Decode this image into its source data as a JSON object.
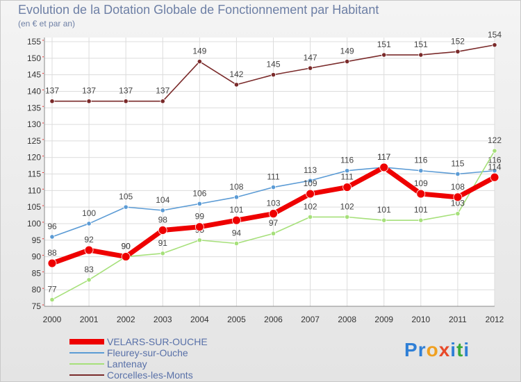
{
  "chart_data": {
    "type": "line",
    "title": "Evolution de la Dotation Globale de Fonctionnement par Habitant",
    "subtitle": "(en € et par an)",
    "categories": [
      "2000",
      "2001",
      "2002",
      "2003",
      "2004",
      "2005",
      "2006",
      "2007",
      "2008",
      "2009",
      "2010",
      "2011",
      "2012"
    ],
    "ylim": [
      75,
      155
    ],
    "yticks": [
      75,
      80,
      85,
      90,
      95,
      100,
      105,
      110,
      115,
      120,
      125,
      130,
      135,
      140,
      145,
      150,
      155
    ],
    "grid": true,
    "series": [
      {
        "name": "Corcelles-les-Monts",
        "color": "#7a2a2a",
        "values": [
          137,
          137,
          137,
          137,
          149,
          142,
          145,
          147,
          149,
          151,
          151,
          152,
          154
        ]
      },
      {
        "name": "Fleurey-sur-Ouche",
        "color": "#5b9bd5",
        "values": [
          96,
          100,
          105,
          104,
          106,
          108,
          111,
          113,
          116,
          117,
          116,
          115,
          116
        ]
      },
      {
        "name": "Lantenay",
        "color": "#a6e07a",
        "values": [
          77,
          83,
          90,
          91,
          95,
          94,
          97,
          102,
          102,
          101,
          101,
          103,
          122
        ]
      },
      {
        "name": "VELARS-SUR-OUCHE",
        "color": "#ee0000",
        "values": [
          88,
          92,
          90,
          98,
          99,
          101,
          103,
          109,
          111,
          117,
          109,
          108,
          114
        ]
      }
    ]
  },
  "legend": [
    {
      "label": "VELARS-SUR-OUCHE",
      "color": "#ee0000"
    },
    {
      "label": "Fleurey-sur-Ouche",
      "color": "#5b9bd5"
    },
    {
      "label": "Lantenay",
      "color": "#a6e07a"
    },
    {
      "label": "Corcelles-les-Monts",
      "color": "#7a2a2a"
    }
  ],
  "brand": {
    "letters": [
      {
        "ch": "P",
        "color": "#2f7fd6"
      },
      {
        "ch": "r",
        "color": "#2f7fd6"
      },
      {
        "ch": "o",
        "color": "#f0a020"
      },
      {
        "ch": "x",
        "color": "#e84a2a"
      },
      {
        "ch": "i",
        "color": "#2f7fd6"
      },
      {
        "ch": "t",
        "color": "#3aaa3a"
      },
      {
        "ch": "i",
        "color": "#2f7fd6"
      }
    ]
  }
}
